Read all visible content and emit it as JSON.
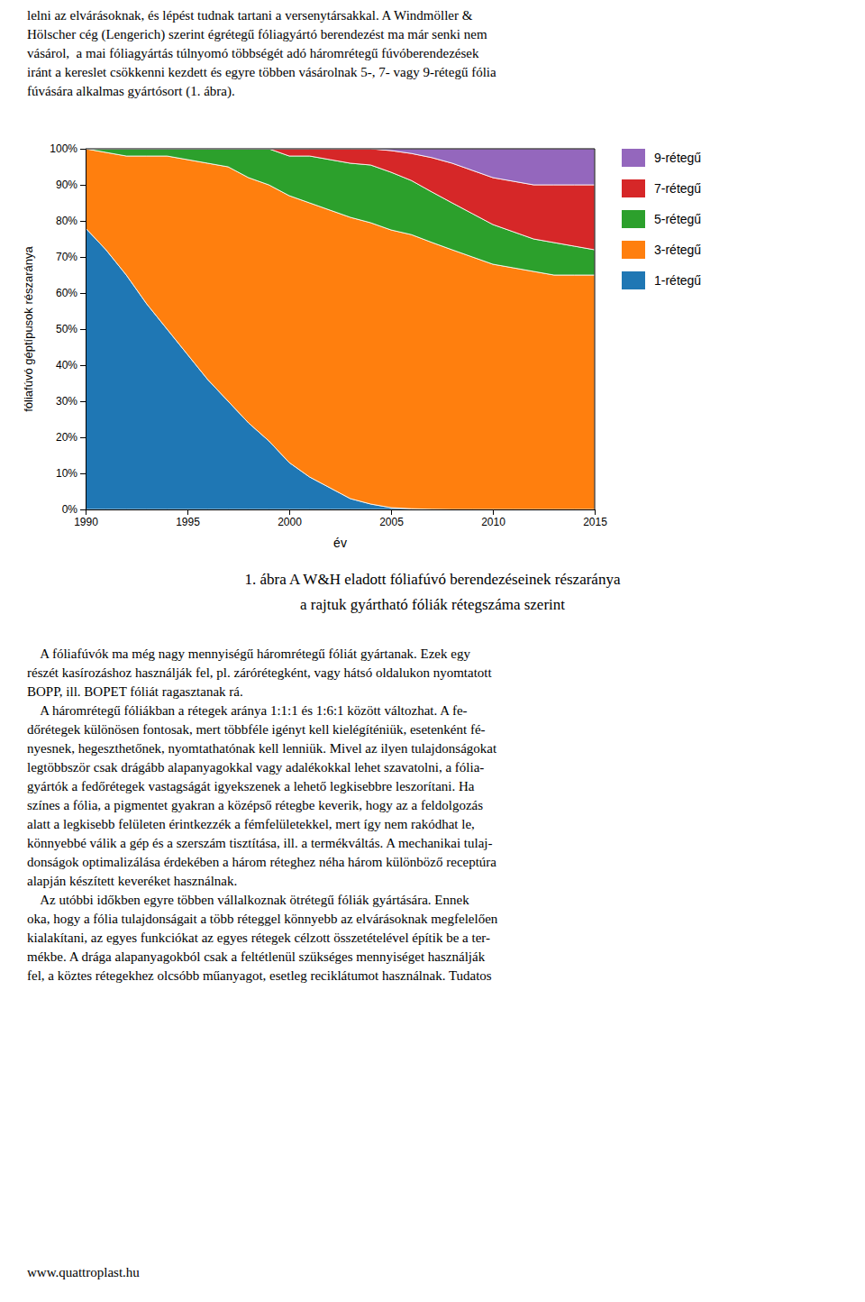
{
  "text_before": [
    "lelni az elvárásoknak, és lépést tudnak tartani a versenytársakkal. A Windmöller &",
    "Hölscher cég (Lengerich) szerint égrétegű fóliagyártó berendezést ma már senki nem",
    "vásárol,  a mai fóliagyártás túlnyomó többségét adó háromrétegű fúvóberendezések",
    "iránt a kereslet csökkenni kezdett és egyre többen vásárolnak 5-, 7- vagy 9-rétegű fólia",
    "fúvására alkalmas gyártósort (1. ábra)."
  ],
  "caption": [
    "1. ábra A W&H eladott fóliafúvó berendezéseinek részaránya",
    "a rajtuk gyártható fóliák rétegszáma szerint"
  ],
  "text_after": [
    "    A fóliafúvók ma még nagy mennyiségű háromrétegű fóliát gyártanak. Ezek egy",
    "részét kasírozáshoz használják fel, pl. zárórétegként, vagy hátsó oldalukon nyomtatott",
    "BOPP, ill. BOPET fóliát ragasztanak rá.",
    "    A háromrétegű fóliákban a rétegek aránya 1:1:1 és 1:6:1 között változhat. A fe-",
    "dőrétegek különösen fontosak, mert többféle igényt kell kielégíténiük, esetenként fé-",
    "nyesnek, hegeszthetőnek, nyomtathatónak kell lenniük. Mivel az ilyen tulajdonságokat",
    "legtöbbször csak drágább alapanyagokkal vagy adalékokkal lehet szavatolni, a fólia-",
    "gyártók a fedőrétegek vastagságát igyekszenek a lehető legkisebbre leszorítani. Ha",
    "színes a fólia, a pigmentet gyakran a középső rétegbe keverik, hogy az a feldolgozás",
    "alatt a legkisebb felületen érintkezzék a fémfelületekkel, mert így nem rakódhat le,",
    "könnyebbé válik a gép és a szerszám tisztítása, ill. a termékváltás. A mechanikai tulaj-",
    "donságok optimalizálása érdekében a három réteghez néha három különböző receptúra",
    "alapján készített keveréket használnak.",
    "    Az utóbbi időkben egyre többen vállalkoznak ötrétegű fóliák gyártására. Ennek",
    "oka, hogy a fólia tulajdonságait a több réteggel könnyebb az elvárásoknak megfelelően",
    "kialakítani, az egyes funkciókat az egyes rétegek célzott összetételével építik be a ter-",
    "mékbe. A drága alapanyagokból csak a feltétlenül szükséges mennyiséget használják",
    "fel, a köztes rétegekhez olcsóbb műanyagot, esetleg reciklátumot használnak. Tudatos"
  ],
  "url": "www.quattroplast.hu",
  "chart_data": {
    "type": "area",
    "stacked": true,
    "x_label": "év",
    "y_label": "fóliafúvó géptípusok részaránya",
    "x": [
      1990,
      1991,
      1992,
      1993,
      1994,
      1995,
      1996,
      1997,
      1998,
      1999,
      2000,
      2001,
      2002,
      2003,
      2004,
      2005,
      2006,
      2007,
      2008,
      2009,
      2010,
      2011,
      2012,
      2013,
      2014,
      2015
    ],
    "series": [
      {
        "name": "1-rétegű",
        "values": [
          78,
          72,
          65,
          57,
          50,
          43,
          36,
          30,
          24,
          19,
          13,
          9,
          6,
          3,
          1.5,
          0.5,
          0.2,
          0.05,
          0,
          0,
          0,
          0,
          0,
          0,
          0,
          0
        ]
      },
      {
        "name": "3-rétegű",
        "values": [
          22,
          27,
          33,
          41,
          48,
          54,
          60,
          65,
          68,
          71,
          74,
          76,
          77,
          78,
          78,
          77,
          76,
          74,
          72,
          70,
          68,
          67,
          66,
          65,
          65,
          65
        ]
      },
      {
        "name": "5-rétegű",
        "values": [
          0,
          1,
          2,
          2,
          2,
          3,
          4,
          5,
          8,
          10,
          11,
          13,
          14,
          15,
          16,
          16,
          15,
          14,
          13,
          12,
          11,
          10,
          9,
          9,
          8,
          7
        ]
      },
      {
        "name": "7-rétegű",
        "values": [
          0,
          0,
          0,
          0,
          0,
          0,
          0,
          0,
          0,
          0,
          2,
          2,
          3,
          4,
          4.5,
          6,
          7.5,
          9.5,
          11,
          12,
          13,
          14,
          15,
          16,
          17,
          18
        ]
      },
      {
        "name": "9-rétegű",
        "values": [
          0,
          0,
          0,
          0,
          0,
          0,
          0,
          0,
          0,
          0,
          0,
          0,
          0,
          0,
          0,
          0.5,
          1.3,
          2.45,
          4,
          6,
          8,
          9,
          10,
          10,
          10,
          10
        ]
      }
    ],
    "xlim": [
      1990,
      2015
    ],
    "ylim": [
      0,
      100
    ],
    "xticks": [
      1990,
      1995,
      2000,
      2005,
      2010,
      2015
    ],
    "yticks": [
      {
        "value": 0,
        "label": "0%"
      },
      {
        "value": 10,
        "label": "10%"
      },
      {
        "value": 20,
        "label": "20%"
      },
      {
        "value": 30,
        "label": "30%"
      },
      {
        "value": 40,
        "label": "40%"
      },
      {
        "value": 50,
        "label": "50%"
      },
      {
        "value": 60,
        "label": "60%"
      },
      {
        "value": 70,
        "label": "70%"
      },
      {
        "value": 80,
        "label": "80%"
      },
      {
        "value": 90,
        "label": "90%"
      },
      {
        "value": 100,
        "label": "100%"
      }
    ],
    "grid": false,
    "legend": "right"
  }
}
